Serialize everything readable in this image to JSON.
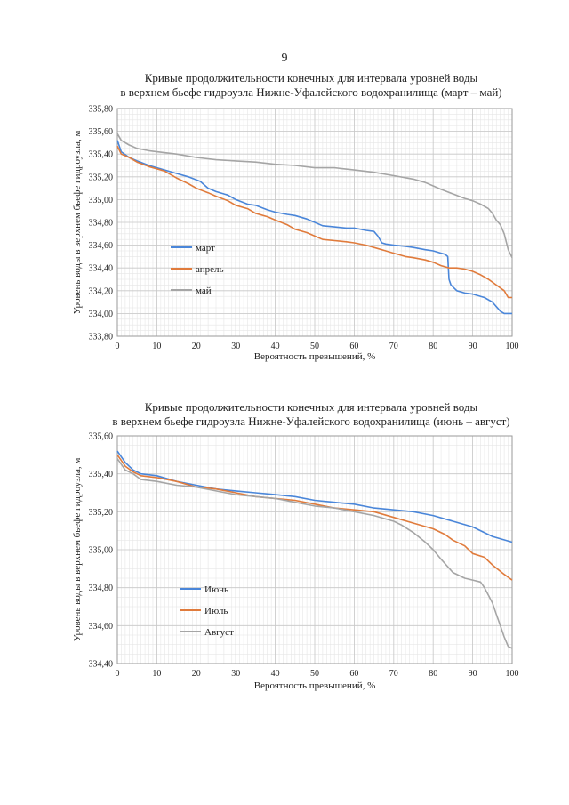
{
  "page_number": "9",
  "charts": [
    {
      "title_line1": "Кривые продолжительности конечных для интервала уровней воды",
      "title_line2": "в верхнем бьефе гидроузла Нижне-Уфалейского водохранилища (март – май)",
      "xlabel": "Вероятность превышений, %",
      "ylabel": "Уровень воды  в верхнем бьефе гидроузла, м"
    },
    {
      "title_line1": "Кривые продолжительности конечных для интервала уровней воды",
      "title_line2": "в верхнем бьефе гидроузла Нижне-Уфалейского водохранилища (июнь – август)",
      "xlabel": "Вероятность превышений, %",
      "ylabel": "Уровень воды в верхнем бьефе гидроузла, м"
    }
  ],
  "chart_data": [
    {
      "type": "line",
      "title": "Кривые продолжительности конечных для интервала уровней воды в верхнем бьефе гидроузла Нижне-Уфалейского водохранилища (март – май)",
      "xlabel": "Вероятность превышений, %",
      "ylabel": "Уровень воды  в верхнем бьефе гидроузла, м",
      "xlim": [
        0,
        100
      ],
      "ylim": [
        333.8,
        335.8
      ],
      "xticks": [
        "0",
        "10",
        "20",
        "30",
        "40",
        "50",
        "60",
        "70",
        "80",
        "90",
        "100"
      ],
      "yticks": [
        "333,80",
        "334,00",
        "334,20",
        "334,40",
        "334,60",
        "334,80",
        "335,00",
        "335,20",
        "335,40",
        "335,60",
        "335,80"
      ],
      "grid": true,
      "legend_position": "left-middle",
      "series": [
        {
          "name": "март",
          "color": "#4a86d9",
          "x": [
            0,
            1,
            3,
            5,
            8,
            12,
            15,
            18,
            21,
            23,
            25,
            28,
            30,
            33,
            35,
            38,
            40,
            43,
            45,
            48,
            50,
            52,
            55,
            58,
            60,
            63,
            65,
            66,
            67,
            68,
            70,
            73,
            75,
            78,
            80,
            82,
            83,
            83.7,
            84,
            84.5,
            86,
            88,
            90,
            93,
            95,
            97,
            98,
            100
          ],
          "y": [
            335.52,
            335.42,
            335.37,
            335.34,
            335.3,
            335.26,
            335.23,
            335.2,
            335.16,
            335.1,
            335.07,
            335.04,
            335.0,
            334.96,
            334.95,
            334.91,
            334.89,
            334.87,
            334.86,
            334.83,
            334.8,
            334.77,
            334.76,
            334.75,
            334.75,
            334.73,
            334.72,
            334.68,
            334.62,
            334.61,
            334.6,
            334.59,
            334.58,
            334.56,
            334.55,
            334.53,
            334.52,
            334.5,
            334.3,
            334.25,
            334.2,
            334.18,
            334.17,
            334.14,
            334.1,
            334.02,
            334.0,
            334.0
          ]
        },
        {
          "name": "апрель",
          "color": "#e07b3c",
          "x": [
            0,
            1,
            3,
            5,
            8,
            12,
            15,
            18,
            20,
            23,
            25,
            28,
            30,
            33,
            35,
            38,
            40,
            43,
            45,
            48,
            50,
            52,
            55,
            58,
            60,
            63,
            65,
            68,
            70,
            73,
            75,
            78,
            80,
            82,
            84,
            86,
            88,
            90,
            92,
            94,
            96,
            98,
            99,
            100
          ],
          "y": [
            335.47,
            335.4,
            335.37,
            335.33,
            335.29,
            335.25,
            335.19,
            335.14,
            335.1,
            335.06,
            335.03,
            334.99,
            334.95,
            334.92,
            334.88,
            334.85,
            334.82,
            334.78,
            334.74,
            334.71,
            334.68,
            334.65,
            334.64,
            334.63,
            334.62,
            334.6,
            334.58,
            334.55,
            334.53,
            334.5,
            334.49,
            334.47,
            334.45,
            334.42,
            334.4,
            334.4,
            334.39,
            334.37,
            334.34,
            334.3,
            334.25,
            334.2,
            334.14,
            334.14
          ]
        },
        {
          "name": "май",
          "color": "#a5a5a5",
          "x": [
            0,
            1,
            3,
            5,
            8,
            10,
            15,
            20,
            25,
            30,
            35,
            40,
            45,
            50,
            55,
            60,
            65,
            70,
            75,
            78,
            80,
            82,
            85,
            88,
            90,
            92,
            94,
            95,
            96,
            97,
            98,
            99,
            100
          ],
          "y": [
            335.58,
            335.52,
            335.48,
            335.45,
            335.43,
            335.42,
            335.4,
            335.37,
            335.35,
            335.34,
            335.33,
            335.31,
            335.3,
            335.28,
            335.28,
            335.26,
            335.24,
            335.21,
            335.18,
            335.15,
            335.12,
            335.09,
            335.05,
            335.01,
            334.99,
            334.96,
            334.92,
            334.88,
            334.82,
            334.78,
            334.7,
            334.56,
            334.49
          ]
        }
      ]
    },
    {
      "type": "line",
      "title": "Кривые продолжительности конечных для интервала уровней воды в верхнем бьефе гидроузла Нижне-Уфалейского водохранилища (июнь – август)",
      "xlabel": "Вероятность превышений, %",
      "ylabel": "Уровень воды в верхнем бьефе гидроузла, м",
      "xlim": [
        0,
        100
      ],
      "ylim": [
        334.4,
        335.6
      ],
      "xticks": [
        "0",
        "10",
        "20",
        "30",
        "40",
        "50",
        "60",
        "70",
        "80",
        "90",
        "100"
      ],
      "yticks": [
        "334,40",
        "334,60",
        "334,80",
        "335,00",
        "335,20",
        "335,40",
        "335,60"
      ],
      "grid": true,
      "legend_position": "left-lower",
      "series": [
        {
          "name": "Июнь",
          "color": "#4a86d9",
          "x": [
            0,
            2,
            4,
            6,
            10,
            15,
            20,
            25,
            30,
            35,
            40,
            45,
            50,
            55,
            60,
            65,
            70,
            75,
            80,
            85,
            90,
            95,
            100
          ],
          "y": [
            335.52,
            335.46,
            335.42,
            335.4,
            335.39,
            335.36,
            335.34,
            335.32,
            335.31,
            335.3,
            335.29,
            335.28,
            335.26,
            335.25,
            335.24,
            335.22,
            335.21,
            335.2,
            335.18,
            335.15,
            335.12,
            335.07,
            335.04
          ]
        },
        {
          "name": "Июль",
          "color": "#e07b3c",
          "x": [
            0,
            2,
            4,
            6,
            10,
            15,
            20,
            25,
            30,
            35,
            40,
            45,
            50,
            55,
            60,
            65,
            70,
            75,
            80,
            83,
            85,
            88,
            90,
            93,
            95,
            98,
            100
          ],
          "y": [
            335.5,
            335.44,
            335.41,
            335.39,
            335.38,
            335.36,
            335.33,
            335.32,
            335.3,
            335.28,
            335.27,
            335.26,
            335.24,
            335.22,
            335.21,
            335.2,
            335.17,
            335.14,
            335.11,
            335.08,
            335.05,
            335.02,
            334.98,
            334.96,
            334.92,
            334.87,
            334.84
          ]
        },
        {
          "name": "Август",
          "color": "#a5a5a5",
          "x": [
            0,
            2,
            4,
            6,
            10,
            15,
            20,
            25,
            30,
            35,
            40,
            45,
            50,
            55,
            60,
            65,
            70,
            72,
            75,
            78,
            80,
            82,
            85,
            87,
            88,
            90,
            92,
            93,
            94,
            95,
            96,
            97,
            98,
            99,
            100
          ],
          "y": [
            335.48,
            335.42,
            335.4,
            335.37,
            335.36,
            335.34,
            335.33,
            335.31,
            335.29,
            335.28,
            335.27,
            335.25,
            335.23,
            335.22,
            335.2,
            335.18,
            335.15,
            335.13,
            335.09,
            335.04,
            335.0,
            334.95,
            334.88,
            334.86,
            334.85,
            334.84,
            334.83,
            334.8,
            334.76,
            334.72,
            334.66,
            334.6,
            334.54,
            334.49,
            334.48
          ]
        }
      ]
    }
  ]
}
